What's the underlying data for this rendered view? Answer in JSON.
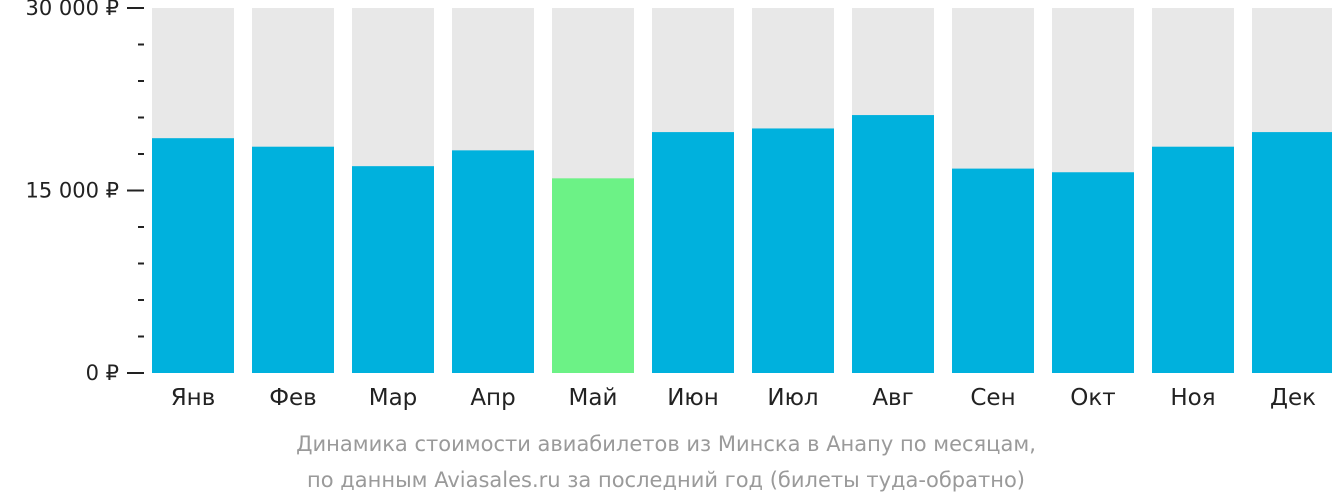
{
  "chart_data": {
    "type": "bar",
    "categories": [
      "Янв",
      "Фев",
      "Мар",
      "Апр",
      "Май",
      "Июн",
      "Июл",
      "Авг",
      "Сен",
      "Окт",
      "Ноя",
      "Дек"
    ],
    "values": [
      19300,
      18600,
      17000,
      18300,
      16000,
      19800,
      20100,
      21200,
      16800,
      16500,
      18600,
      19800
    ],
    "highlight_index": 4,
    "ylim": [
      0,
      30000
    ],
    "yticks": [
      {
        "value": 30000,
        "label": "30 000 ₽"
      },
      {
        "value": 15000,
        "label": "15 000 ₽"
      },
      {
        "value": 0,
        "label": "0 ₽"
      }
    ],
    "minor_tick_step": 3000,
    "grid": false,
    "colors": {
      "bar": "#00b1dd",
      "highlight": "#6cf286",
      "track": "#e8e8e8",
      "axis": "#222222"
    }
  },
  "caption": {
    "line1": "Динамика стоимости авиабилетов из Минска в Анапу по месяцам,",
    "line2": "по данным Aviasales.ru за последний год (билеты туда-обратно)"
  }
}
